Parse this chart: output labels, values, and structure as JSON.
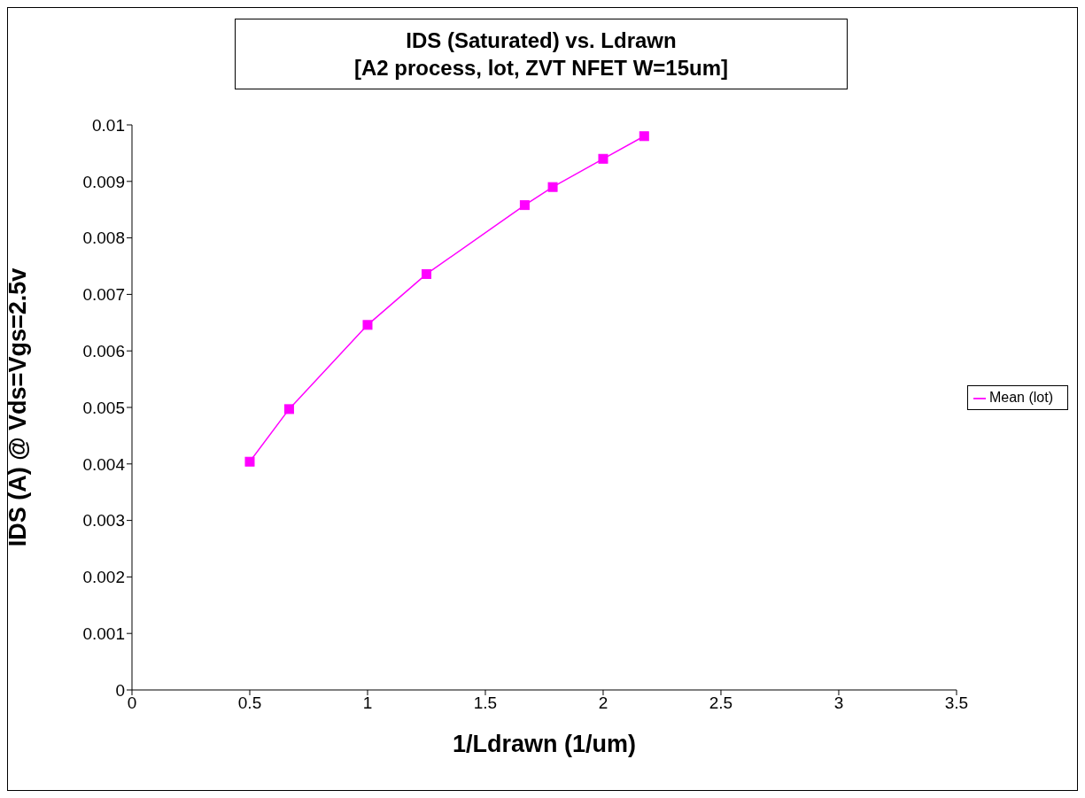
{
  "chart_data": {
    "type": "line",
    "title": "IDS (Saturated) vs. Ldrawn\n[A2 process, lot, ZVT NFET W=15um]",
    "xlabel": "1/Ldrawn (1/um)",
    "ylabel": "IDS (A) @ Vds=Vgs=2.5v",
    "xlim": [
      0,
      3.5
    ],
    "xticks": [
      0,
      0.5,
      1,
      1.5,
      2,
      2.5,
      3,
      3.5
    ],
    "ylim": [
      0,
      0.01
    ],
    "yticks": [
      0,
      0.001,
      0.002,
      0.003,
      0.004,
      0.005,
      0.006,
      0.007,
      0.008,
      0.009,
      0.01
    ],
    "x": [
      0.5,
      0.667,
      1,
      1.25,
      1.667,
      1.786,
      2,
      2.174
    ],
    "series": [
      {
        "name": "Mean (lot)",
        "color": "#ff00ff",
        "values": [
          0.00404,
          0.00497,
          0.00646,
          0.00736,
          0.00858,
          0.0089,
          0.0094,
          0.0098
        ]
      }
    ],
    "marker": "square",
    "grid": false,
    "legend": "right"
  }
}
